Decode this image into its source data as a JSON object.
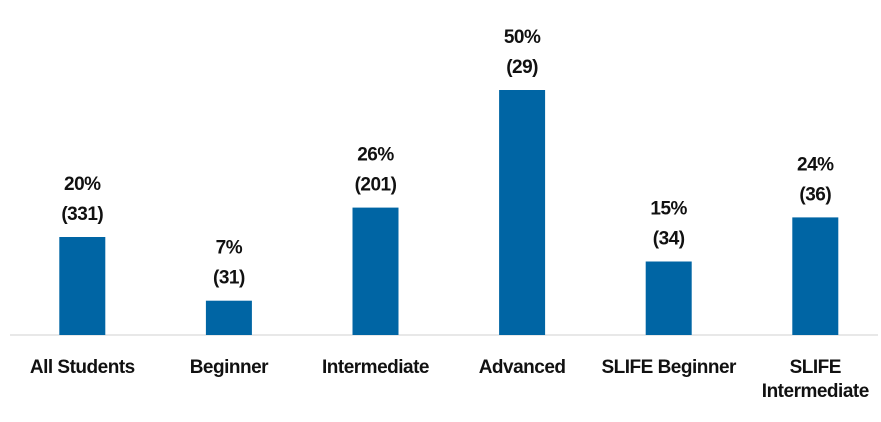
{
  "chart_data": {
    "type": "bar",
    "categories": [
      "All Students",
      "Beginner",
      "Intermediate",
      "Advanced",
      "SLIFE Beginner",
      "SLIFE Intermediate"
    ],
    "values": [
      20,
      7,
      26,
      50,
      15,
      24
    ],
    "value_labels": [
      "20%",
      "7%",
      "26%",
      "50%",
      "15%",
      "24%"
    ],
    "count_labels": [
      "(331)",
      "(31)",
      "(201)",
      "(29)",
      "(34)",
      "(36)"
    ],
    "color": "#0065a4",
    "ylim": [
      0,
      50
    ]
  }
}
